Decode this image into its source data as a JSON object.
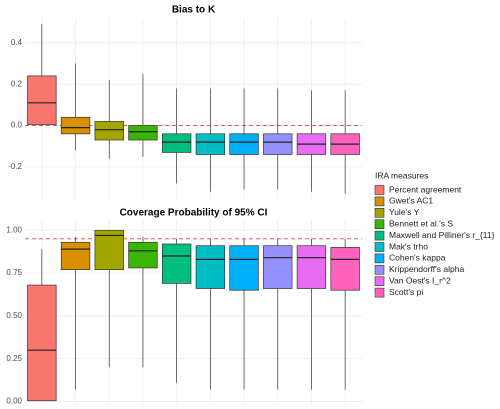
{
  "legend": {
    "title": "IRA measures",
    "position": "right"
  },
  "chart_data": [
    {
      "type": "box",
      "title": "Bias to K",
      "ylim": [
        -0.36,
        0.52
      ],
      "yticks": [
        -0.2,
        {
          "value": 0,
          "label": "0.0"
        },
        0.2,
        0.4
      ],
      "grid": true,
      "hline": {
        "value": 0,
        "color": "#e8453c",
        "dashed": true
      },
      "series": [
        {
          "name": "Percent agreement",
          "color": "#F8766D",
          "values": [
            0.0,
            0.005,
            0.11,
            0.24,
            0.49
          ]
        },
        {
          "name": "Gwet's AC1",
          "color": "#D89000",
          "values": [
            -0.12,
            -0.04,
            -0.01,
            0.04,
            0.3
          ]
        },
        {
          "name": "Yule's Y",
          "color": "#A3A500",
          "values": [
            -0.16,
            -0.07,
            -0.02,
            0.02,
            0.22
          ]
        },
        {
          "name": "Bennett et al.'s S",
          "color": "#39B600",
          "values": [
            -0.15,
            -0.07,
            -0.03,
            0.0,
            0.25
          ]
        },
        {
          "name": "Maxwell and Pilliner's r_{11}",
          "color": "#00BF7D",
          "values": [
            -0.28,
            -0.13,
            -0.08,
            -0.04,
            0.18
          ]
        },
        {
          "name": "Mak's trho",
          "color": "#00BFC4",
          "values": [
            -0.32,
            -0.14,
            -0.08,
            -0.04,
            0.18
          ]
        },
        {
          "name": "Cohen's kappa",
          "color": "#00B0F6",
          "values": [
            -0.31,
            -0.14,
            -0.08,
            -0.04,
            0.18
          ]
        },
        {
          "name": "Krippendorff's alpha",
          "color": "#9590FF",
          "values": [
            -0.31,
            -0.14,
            -0.08,
            -0.04,
            0.18
          ]
        },
        {
          "name": "Van Oest's I_r^2",
          "color": "#E76BF3",
          "values": [
            -0.32,
            -0.14,
            -0.09,
            -0.04,
            0.17
          ]
        },
        {
          "name": "Scott's pi",
          "color": "#FF62BC",
          "values": [
            -0.33,
            -0.14,
            -0.09,
            -0.04,
            0.17
          ]
        }
      ]
    },
    {
      "type": "box",
      "title": "Coverage Probability of 95% CI",
      "ylim": [
        -0.02,
        1.06
      ],
      "yticks": [
        {
          "value": 0,
          "label": "0.00"
        },
        {
          "value": 0.25,
          "label": "0.25"
        },
        {
          "value": 0.5,
          "label": "0.50"
        },
        {
          "value": 0.75,
          "label": "0.75"
        },
        {
          "value": 1,
          "label": "1.00"
        }
      ],
      "grid": true,
      "hline": {
        "value": 0.95,
        "color": "#e8453c",
        "dashed": true
      },
      "series": [
        {
          "color": "#F8766D",
          "values": [
            0.005,
            0.005,
            0.3,
            0.68,
            0.89
          ]
        },
        {
          "color": "#D89000",
          "values": [
            0.07,
            0.77,
            0.89,
            0.93,
            0.96
          ]
        },
        {
          "color": "#A3A500",
          "values": [
            0.2,
            0.77,
            0.97,
            1.0,
            1.0
          ]
        },
        {
          "color": "#39B600",
          "values": [
            0.2,
            0.78,
            0.88,
            0.93,
            0.96
          ]
        },
        {
          "color": "#00BF7D",
          "values": [
            0.11,
            0.69,
            0.85,
            0.92,
            0.95
          ]
        },
        {
          "color": "#00BFC4",
          "values": [
            0.07,
            0.66,
            0.83,
            0.91,
            0.95
          ]
        },
        {
          "color": "#00B0F6",
          "values": [
            0.07,
            0.65,
            0.83,
            0.91,
            0.95
          ]
        },
        {
          "color": "#9590FF",
          "values": [
            0.07,
            0.66,
            0.84,
            0.91,
            0.95
          ]
        },
        {
          "color": "#E76BF3",
          "values": [
            0.07,
            0.66,
            0.84,
            0.91,
            0.95
          ]
        },
        {
          "color": "#FF62BC",
          "values": [
            0.07,
            0.65,
            0.83,
            0.9,
            0.95
          ]
        }
      ]
    }
  ]
}
